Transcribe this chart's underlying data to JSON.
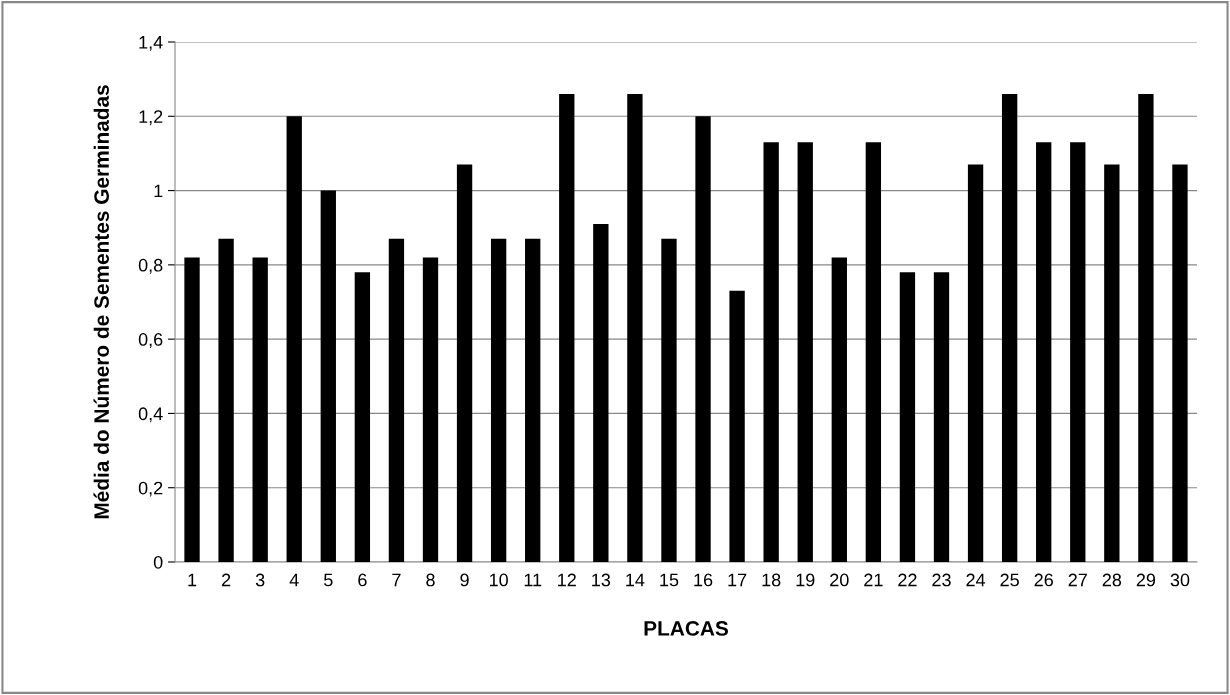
{
  "chart_data": {
    "type": "bar",
    "xlabel": "PLACAS",
    "ylabel": "Média do Número de Sementes Germinadas",
    "categories": [
      "1",
      "2",
      "3",
      "4",
      "5",
      "6",
      "7",
      "8",
      "9",
      "10",
      "11",
      "12",
      "13",
      "14",
      "15",
      "16",
      "17",
      "18",
      "19",
      "20",
      "21",
      "22",
      "23",
      "24",
      "25",
      "26",
      "27",
      "28",
      "29",
      "30"
    ],
    "values": [
      0.82,
      0.87,
      0.82,
      1.2,
      1.0,
      0.78,
      0.87,
      0.82,
      1.07,
      0.87,
      0.87,
      1.26,
      0.91,
      1.26,
      0.87,
      1.2,
      0.73,
      1.13,
      1.13,
      0.82,
      1.13,
      0.78,
      0.78,
      1.07,
      1.26,
      1.13,
      1.13,
      1.07,
      1.26,
      1.07
    ],
    "color": "#000000",
    "ylim": [
      0,
      1.4
    ],
    "yticks": [
      0,
      {
        "value": 0.2,
        "label": "0,2"
      },
      {
        "value": 0.4,
        "label": "0,4"
      },
      {
        "value": 0.6,
        "label": "0,6"
      },
      {
        "value": 0.8,
        "label": "0,8"
      },
      1,
      {
        "value": 1.2,
        "label": "1,2"
      },
      {
        "value": 1.4,
        "label": "1,4"
      }
    ],
    "grid": "y"
  }
}
